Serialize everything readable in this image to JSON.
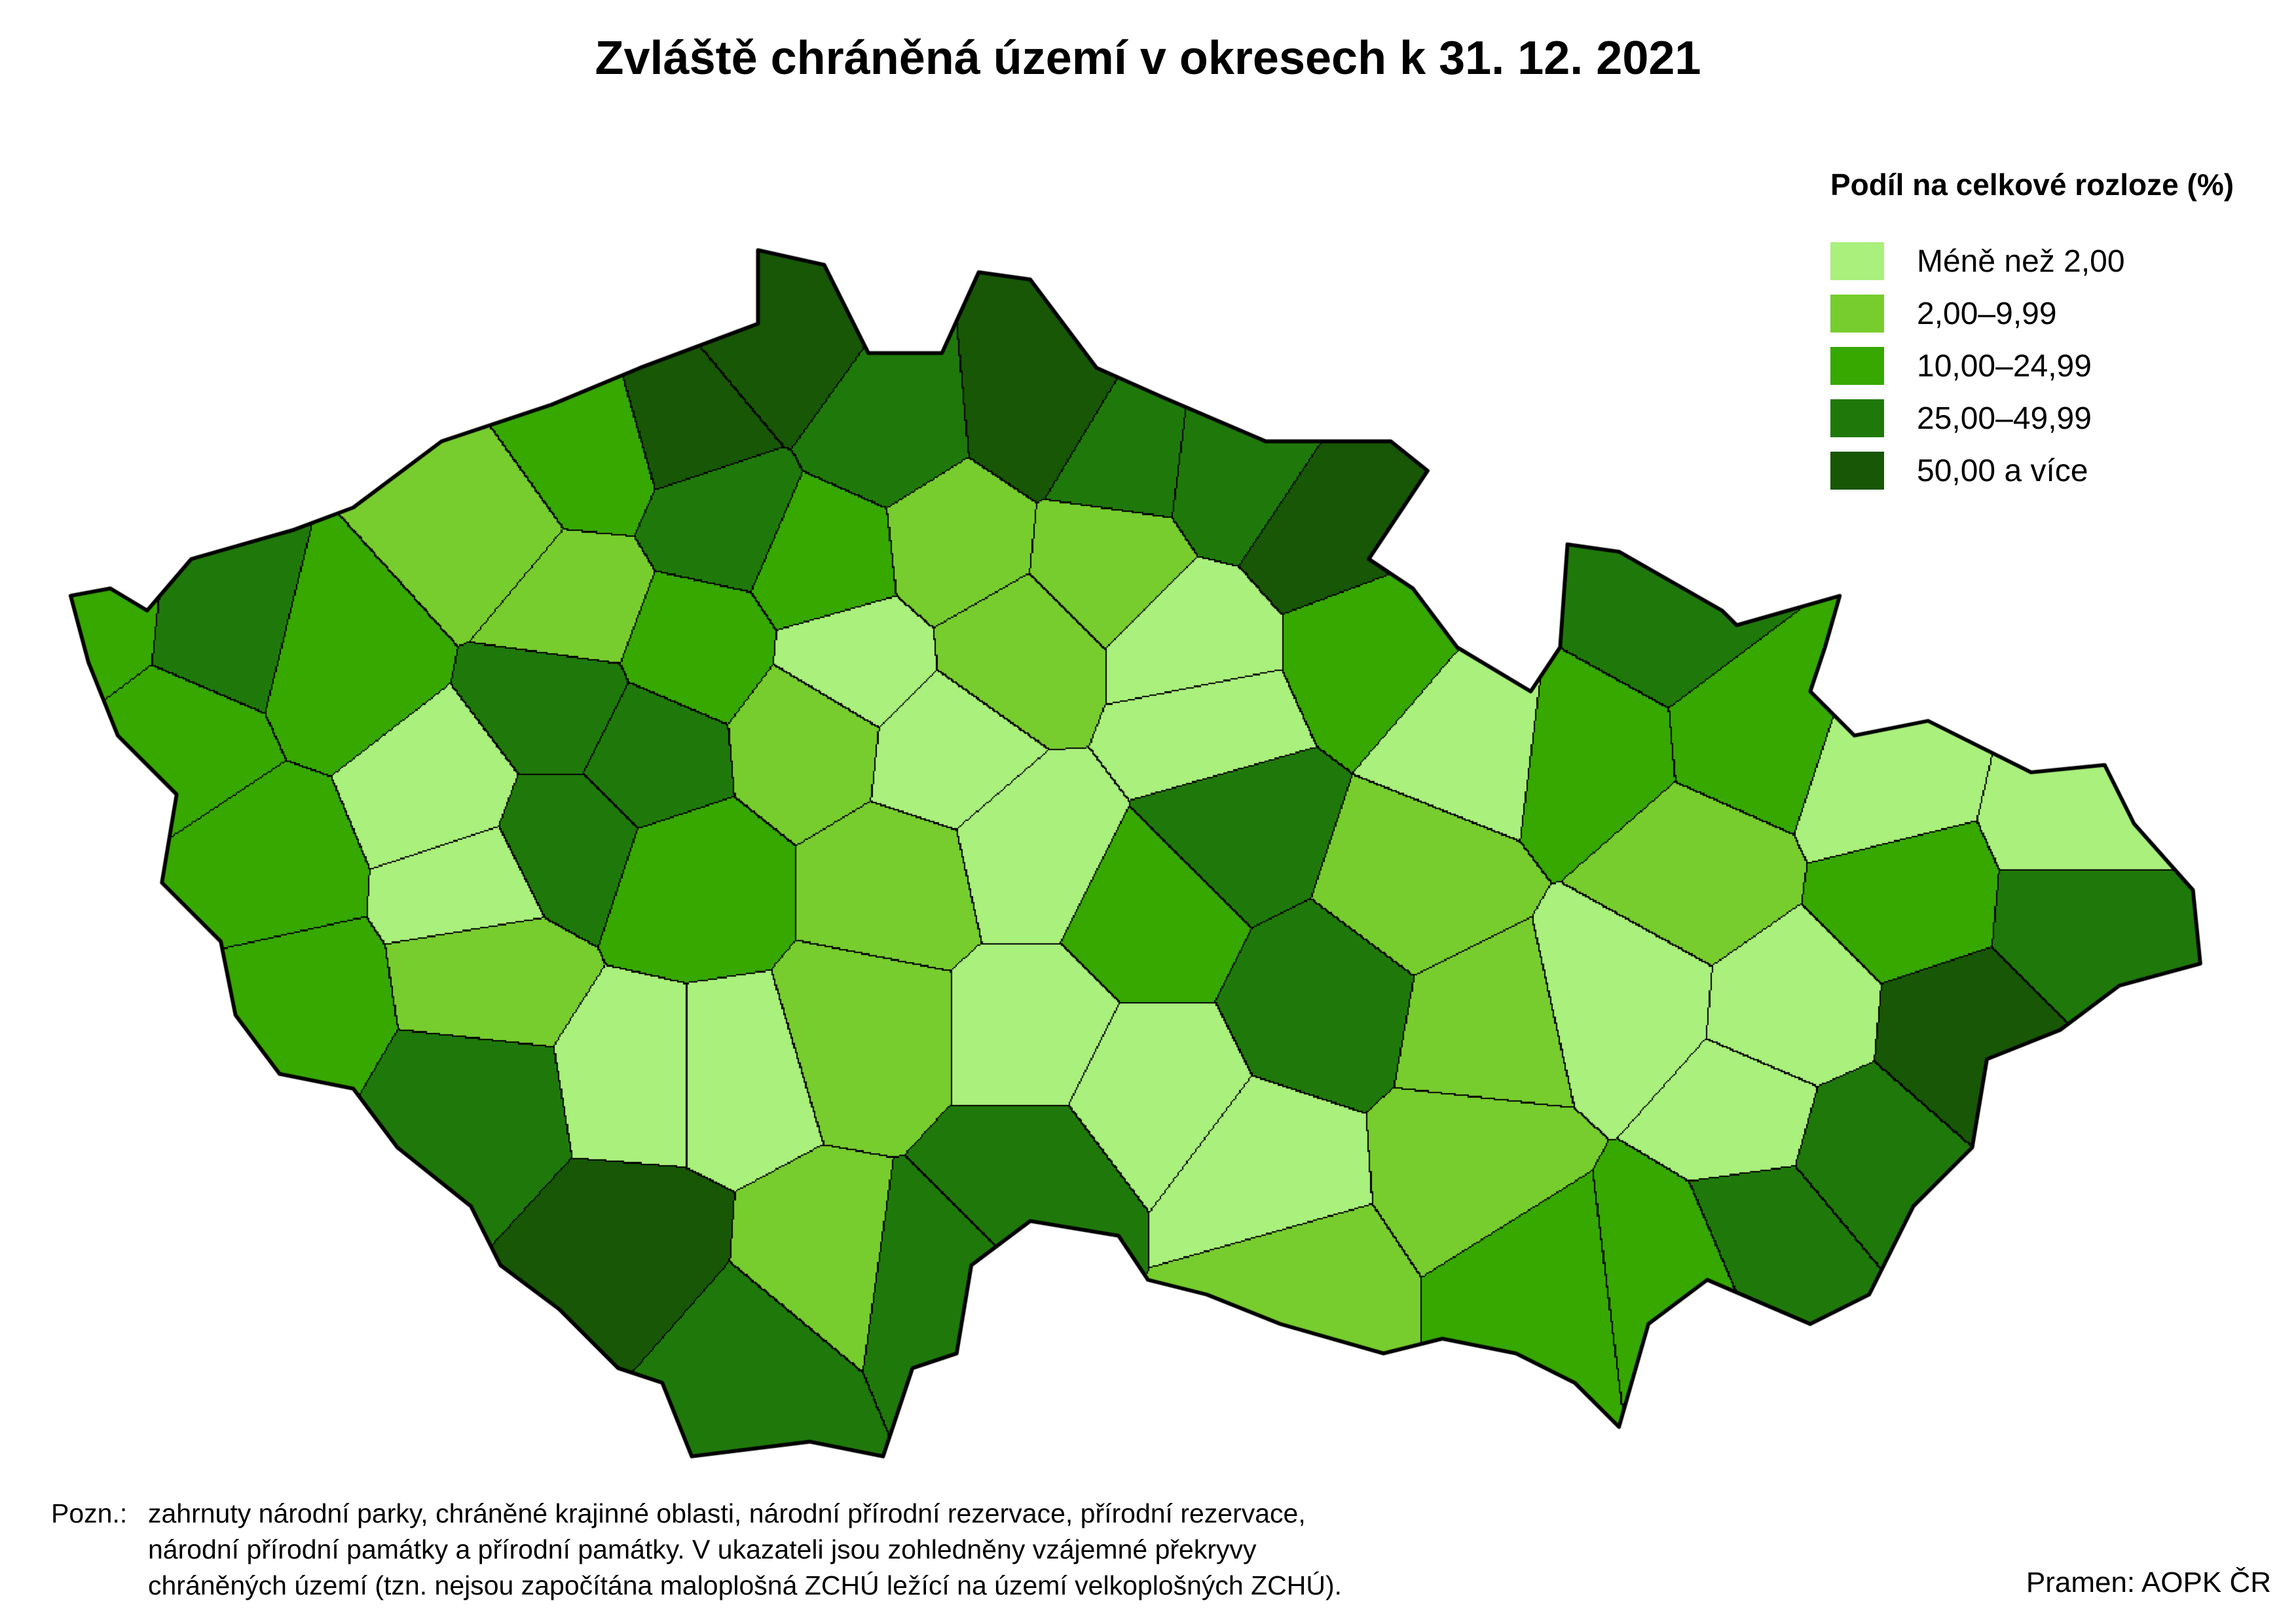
{
  "title": "Zvláště chráněná území v okresech k 31. 12. 2021",
  "legend": {
    "title": "Podíl na celkové rozloze (%)",
    "items": [
      {
        "label": "Méně než 2,00",
        "color": "#aaf07c"
      },
      {
        "label": "2,00–9,99",
        "color": "#77cd2e"
      },
      {
        "label": "10,00–24,99",
        "color": "#36a800"
      },
      {
        "label": "25,00–49,99",
        "color": "#1f790a"
      },
      {
        "label": "50,00 a více",
        "color": "#175705"
      }
    ]
  },
  "note": {
    "label": "Pozn.:",
    "lines": [
      "zahrnuty národní parky, chráněné krajinné oblasti, národní přírodní rezervace, přírodní rezervace,",
      "národní přírodní památky a přírodní památky. V ukazateli jsou zohledněny vzájemné překryvy",
      "chráněných území (tzn. nejsou započítána maloplošná ZCHÚ ležící na území velkoplošných ZCHÚ)."
    ]
  },
  "source": "Pramen: AOPK ČR"
}
